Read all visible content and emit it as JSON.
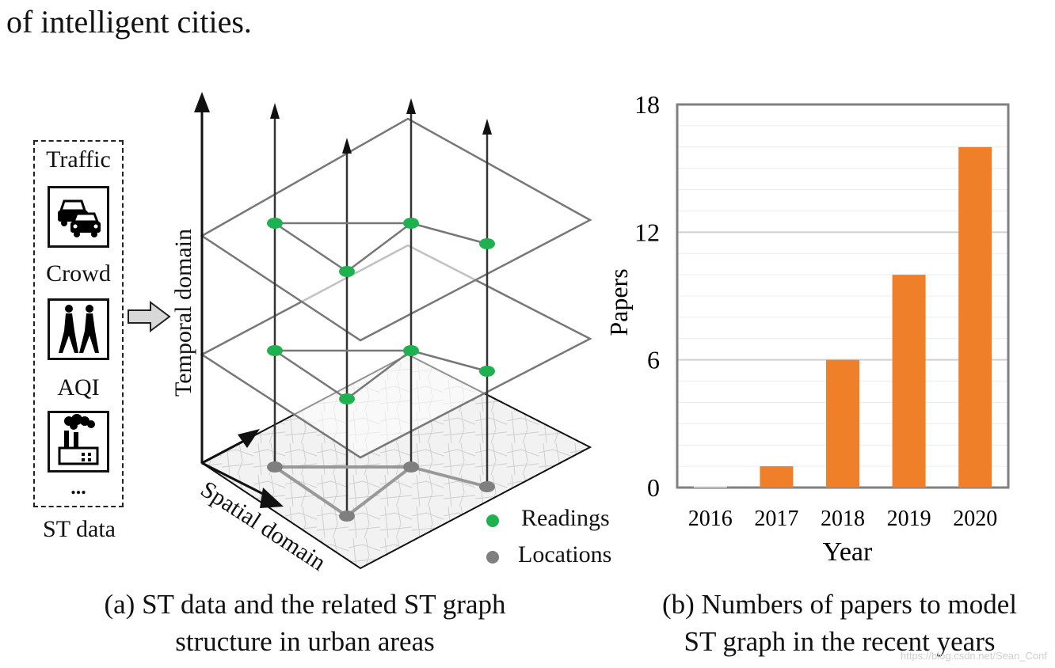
{
  "intro_text": "of intelligent cities.",
  "st_panel": {
    "items": [
      {
        "label": "Traffic",
        "icon": "traffic-cars-icon"
      },
      {
        "label": "Crowd",
        "icon": "pedestrians-icon"
      },
      {
        "label": "AQI",
        "icon": "factory-pollution-icon"
      }
    ],
    "ellipsis": "...",
    "caption": "ST data"
  },
  "graph_figure": {
    "temporal_label": "Temporal domain",
    "spatial_label": "Spatial domain",
    "legend": [
      {
        "label": "Readings",
        "color": "#1fb14f"
      },
      {
        "label": "Locations",
        "color": "#7f7f7f"
      }
    ]
  },
  "caption_a": {
    "line1": "(a) ST data and the related ST graph",
    "line2": "structure in urban areas"
  },
  "caption_b": {
    "line1": "(b) Numbers of papers to model",
    "line2": "ST graph in the recent years"
  },
  "watermark": "https://blog.csdn.net/Sean_Conf",
  "chart_data": {
    "type": "bar",
    "categories": [
      "2016",
      "2017",
      "2018",
      "2019",
      "2020"
    ],
    "values": [
      0,
      1,
      6,
      10,
      16
    ],
    "title": "",
    "xlabel": "Year",
    "ylabel": "Papers",
    "ylim": [
      0,
      18
    ],
    "yticks": [
      "0",
      "6",
      "12",
      "18"
    ],
    "minor_gridlines": true,
    "bar_color": "#f07f2a"
  }
}
